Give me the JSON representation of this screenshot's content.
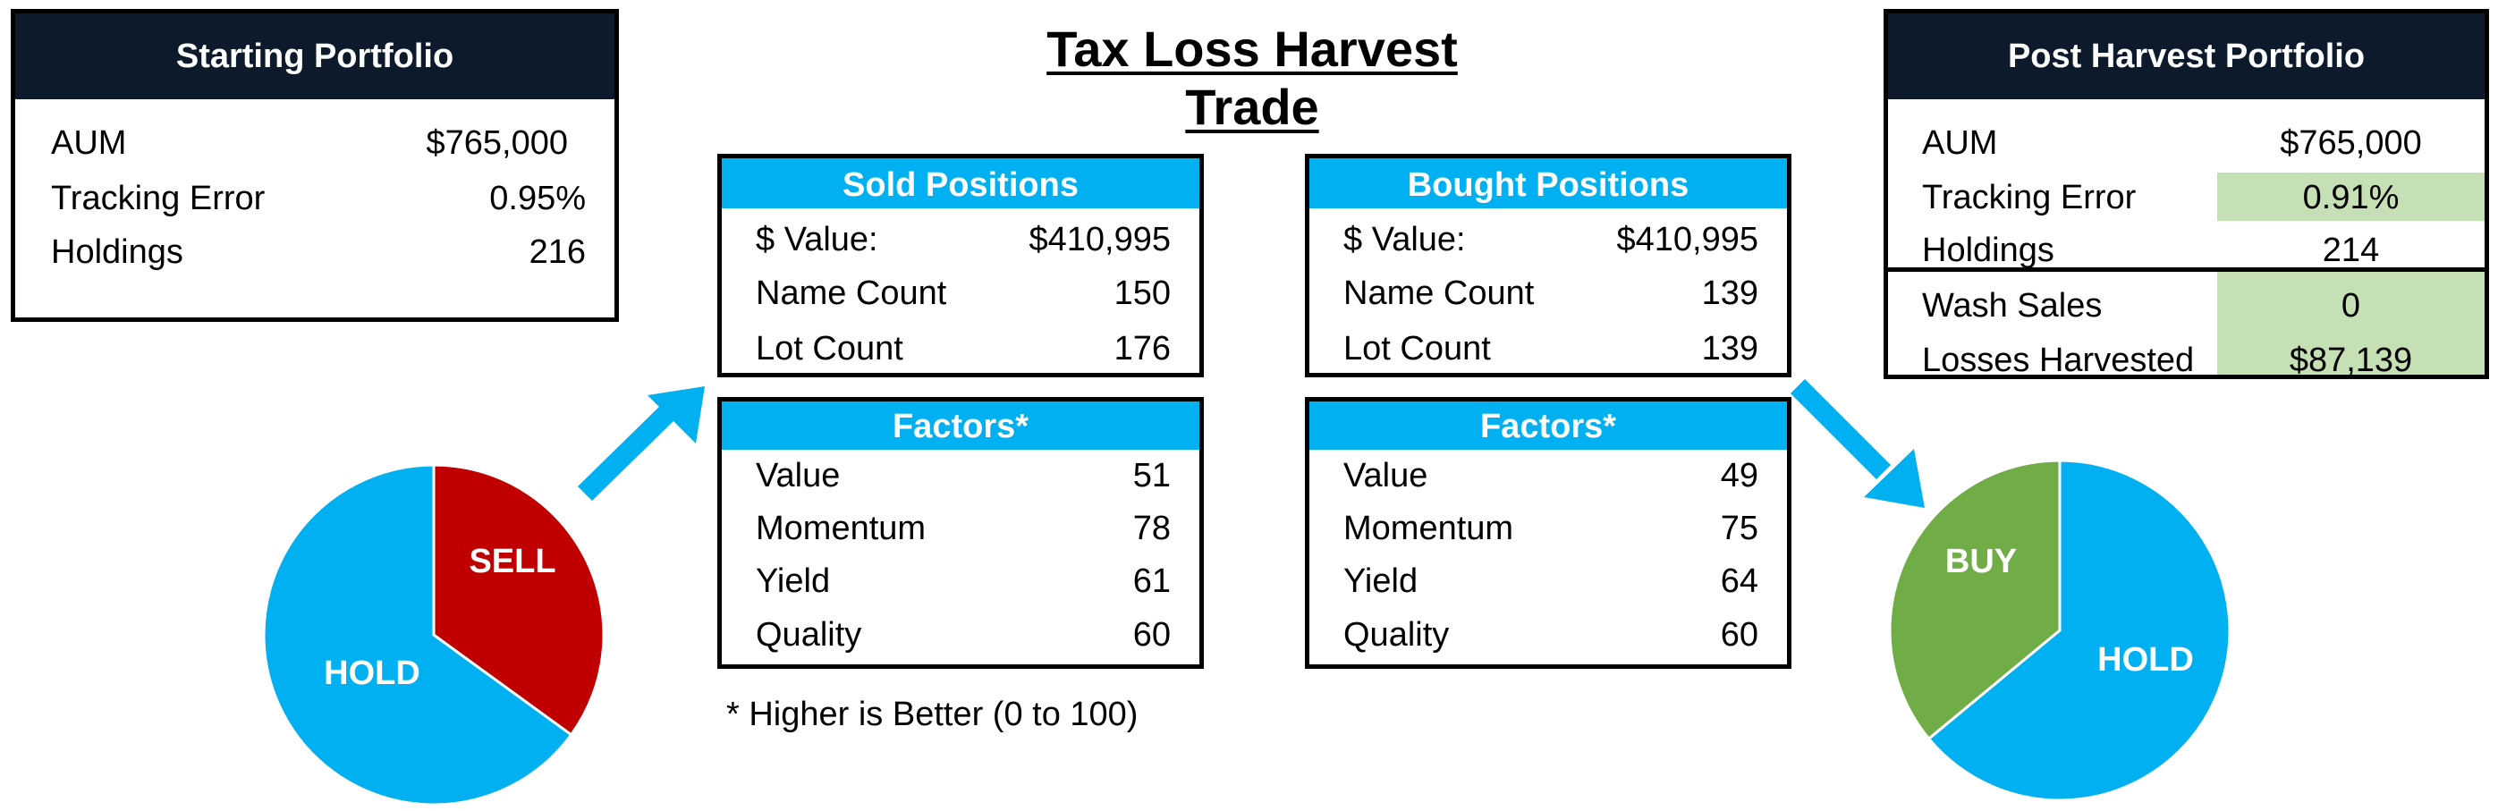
{
  "title": "Tax Loss Harvest Trade",
  "starting_portfolio": {
    "title": "Starting Portfolio",
    "rows": [
      {
        "label": "AUM",
        "value": "$765,000"
      },
      {
        "label": "Tracking Error",
        "value": "0.95%"
      },
      {
        "label": "Holdings",
        "value": "216"
      }
    ]
  },
  "sold_positions": {
    "title": "Sold Positions",
    "rows": [
      {
        "label": "$ Value:",
        "value": "$410,995"
      },
      {
        "label": "Name Count",
        "value": "150"
      },
      {
        "label": "Lot Count",
        "value": "176"
      }
    ]
  },
  "sold_factors": {
    "title": "Factors*",
    "rows": [
      {
        "label": "Value",
        "value": "51"
      },
      {
        "label": "Momentum",
        "value": "78"
      },
      {
        "label": "Yield",
        "value": "61"
      },
      {
        "label": "Quality",
        "value": "60"
      }
    ]
  },
  "bought_positions": {
    "title": "Bought Positions",
    "rows": [
      {
        "label": "$ Value:",
        "value": "$410,995"
      },
      {
        "label": "Name Count",
        "value": "139"
      },
      {
        "label": "Lot Count",
        "value": "139"
      }
    ]
  },
  "bought_factors": {
    "title": "Factors*",
    "rows": [
      {
        "label": "Value",
        "value": "49"
      },
      {
        "label": "Momentum",
        "value": "75"
      },
      {
        "label": "Yield",
        "value": "64"
      },
      {
        "label": "Quality",
        "value": "60"
      }
    ]
  },
  "post_harvest": {
    "title": "Post Harvest Portfolio",
    "rows": [
      {
        "label": "AUM",
        "value": "$765,000"
      },
      {
        "label": "Tracking Error",
        "value": "0.91%"
      },
      {
        "label": "Holdings",
        "value": "214"
      },
      {
        "label": "Wash Sales",
        "value": "0"
      },
      {
        "label": "Losses Harvested",
        "value": "$87,139"
      }
    ]
  },
  "footnote": "* Higher is Better (0 to 100)",
  "left_pie": {
    "slices": [
      {
        "label": "SELL",
        "fraction": 0.35,
        "color": "#c00000"
      },
      {
        "label": "HOLD",
        "fraction": 0.65,
        "color": "#00b0f0"
      }
    ]
  },
  "right_pie": {
    "slices": [
      {
        "label": "HOLD",
        "fraction": 0.64,
        "color": "#00b0f0"
      },
      {
        "label": "BUY",
        "fraction": 0.36,
        "color": "#70ad47"
      }
    ]
  },
  "colors": {
    "dark_header": "#0c1a2c",
    "blue": "#00b0f0",
    "red": "#c00000",
    "green": "#70ad47",
    "highlight": "#c5e0b4"
  }
}
